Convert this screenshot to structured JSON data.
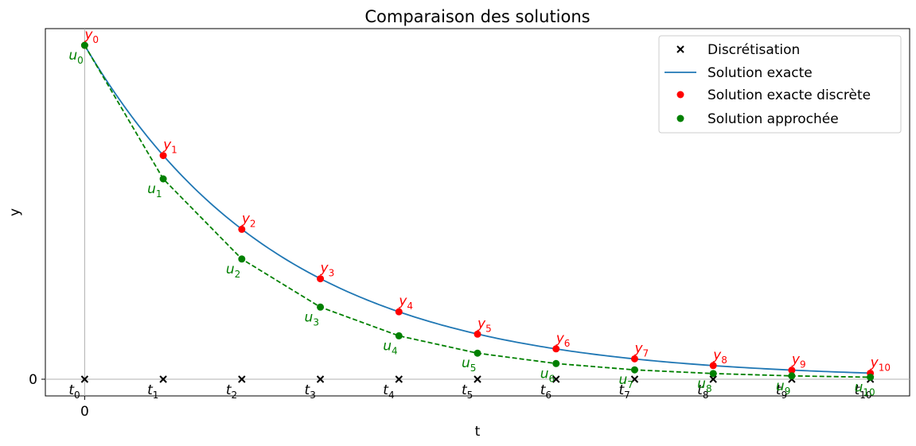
{
  "chart_data": {
    "type": "line",
    "title": "Comparaison des solutions",
    "xlabel": "t",
    "ylabel": "y",
    "xlim": [
      -0.5,
      10.5
    ],
    "ylim": [
      -0.05,
      1.05
    ],
    "x_ticks": [
      {
        "value": 0,
        "label": "0"
      }
    ],
    "y_ticks": [
      {
        "value": 0,
        "label": "0"
      }
    ],
    "grid": false,
    "axis_lines": {
      "x0": true,
      "y0": true
    },
    "legend_position": "top-right",
    "x": [
      0,
      1,
      2,
      3,
      4,
      5,
      6,
      7,
      8,
      9,
      10
    ],
    "series": [
      {
        "name": "Discrétisation",
        "kind": "marker-x",
        "color": "#000000",
        "x": [
          0,
          1,
          2,
          3,
          4,
          5,
          6,
          7,
          8,
          9,
          10
        ],
        "y": [
          0,
          0,
          0,
          0,
          0,
          0,
          0,
          0,
          0,
          0,
          0
        ],
        "point_labels": [
          {
            "base": "t",
            "sub": "0"
          },
          {
            "base": "t",
            "sub": "1"
          },
          {
            "base": "t",
            "sub": "2"
          },
          {
            "base": "t",
            "sub": "3"
          },
          {
            "base": "t",
            "sub": "4"
          },
          {
            "base": "t",
            "sub": "5"
          },
          {
            "base": "t",
            "sub": "6"
          },
          {
            "base": "t",
            "sub": "7"
          },
          {
            "base": "t",
            "sub": "8"
          },
          {
            "base": "t",
            "sub": "9"
          },
          {
            "base": "t",
            "sub": "10"
          }
        ]
      },
      {
        "name": "Solution exacte",
        "kind": "line",
        "color": "#1f77b4",
        "function": "exp(-0.4 t)"
      },
      {
        "name": "Solution exacte discrète",
        "kind": "scatter",
        "color": "#ff0000",
        "x": [
          0,
          1,
          2,
          3,
          4,
          5,
          6,
          7,
          8,
          9,
          10
        ],
        "y": [
          1.0,
          0.67,
          0.449,
          0.301,
          0.202,
          0.135,
          0.091,
          0.061,
          0.041,
          0.027,
          0.018
        ],
        "point_labels": [
          {
            "base": "y",
            "sub": "0"
          },
          {
            "base": "y",
            "sub": "1"
          },
          {
            "base": "y",
            "sub": "2"
          },
          {
            "base": "y",
            "sub": "3"
          },
          {
            "base": "y",
            "sub": "4"
          },
          {
            "base": "y",
            "sub": "5"
          },
          {
            "base": "y",
            "sub": "6"
          },
          {
            "base": "y",
            "sub": "7"
          },
          {
            "base": "y",
            "sub": "8"
          },
          {
            "base": "y",
            "sub": "9"
          },
          {
            "base": "y",
            "sub": "10"
          }
        ]
      },
      {
        "name": "Solution approchée",
        "kind": "scatter-dashed",
        "color": "#008000",
        "x": [
          0,
          1,
          2,
          3,
          4,
          5,
          6,
          7,
          8,
          9,
          10
        ],
        "y": [
          1.0,
          0.6,
          0.36,
          0.216,
          0.13,
          0.078,
          0.047,
          0.028,
          0.017,
          0.01,
          0.006
        ],
        "point_labels": [
          {
            "base": "u",
            "sub": "0"
          },
          {
            "base": "u",
            "sub": "1"
          },
          {
            "base": "u",
            "sub": "2"
          },
          {
            "base": "u",
            "sub": "3"
          },
          {
            "base": "u",
            "sub": "4"
          },
          {
            "base": "u",
            "sub": "5"
          },
          {
            "base": "u",
            "sub": "6"
          },
          {
            "base": "u",
            "sub": "7"
          },
          {
            "base": "u",
            "sub": "8"
          },
          {
            "base": "u",
            "sub": "9"
          },
          {
            "base": "u",
            "sub": "10"
          }
        ]
      }
    ]
  }
}
